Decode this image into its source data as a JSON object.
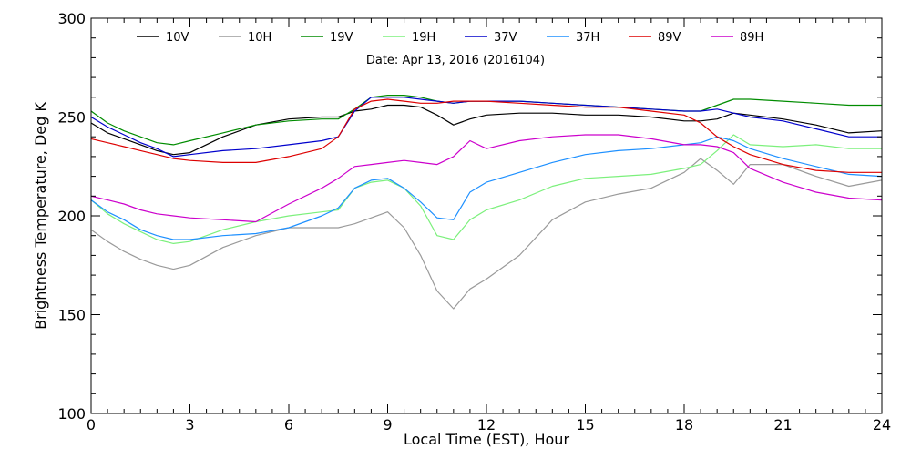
{
  "chart_data": {
    "type": "line",
    "subtitle": "Date: Apr 13, 2016 (2016104)",
    "xlabel": "Local Time (EST), Hour",
    "ylabel": "Brightness Temperature, Deg K",
    "xlim": [
      0,
      24
    ],
    "ylim": [
      100,
      300
    ],
    "xticks": [
      0,
      3,
      6,
      9,
      12,
      15,
      18,
      21,
      24
    ],
    "yticks": [
      100,
      150,
      200,
      250,
      300
    ],
    "grid": false,
    "legend_position": "top",
    "series": [
      {
        "name": "10V",
        "color": "#000000",
        "x": [
          0,
          0.5,
          1,
          1.5,
          2,
          2.5,
          3,
          4,
          5,
          6,
          7,
          7.5,
          8,
          8.5,
          9,
          9.5,
          10,
          10.5,
          11,
          11.5,
          12,
          13,
          14,
          15,
          16,
          17,
          18,
          18.5,
          19,
          19.5,
          20,
          21,
          22,
          23,
          24
        ],
        "y": [
          247,
          242,
          239,
          236,
          233,
          231,
          232,
          240,
          246,
          249,
          250,
          250,
          253,
          254,
          256,
          256,
          255,
          251,
          246,
          249,
          251,
          252,
          252,
          251,
          251,
          250,
          248,
          248,
          249,
          252,
          251,
          249,
          246,
          242,
          243
        ]
      },
      {
        "name": "10H",
        "color": "#9a9a9a",
        "x": [
          0,
          0.5,
          1,
          1.5,
          2,
          2.5,
          3,
          4,
          5,
          6,
          7,
          7.5,
          8,
          8.5,
          9,
          9.5,
          10,
          10.5,
          11,
          11.5,
          12,
          13,
          14,
          15,
          16,
          17,
          18,
          18.5,
          19,
          19.5,
          20,
          21,
          22,
          23,
          24
        ],
        "y": [
          193,
          187,
          182,
          178,
          175,
          173,
          175,
          184,
          190,
          194,
          194,
          194,
          196,
          199,
          202,
          194,
          180,
          162,
          153,
          163,
          168,
          180,
          198,
          207,
          211,
          214,
          222,
          229,
          223,
          216,
          226,
          226,
          220,
          215,
          218
        ]
      },
      {
        "name": "19V",
        "color": "#008c00",
        "x": [
          0,
          0.5,
          1,
          1.5,
          2,
          2.5,
          3,
          4,
          5,
          6,
          7,
          7.5,
          8,
          8.5,
          9,
          9.5,
          10,
          10.5,
          11,
          11.5,
          12,
          13,
          14,
          15,
          16,
          17,
          18,
          18.5,
          19,
          19.5,
          20,
          21,
          22,
          23,
          24
        ],
        "y": [
          253,
          247,
          243,
          240,
          237,
          236,
          238,
          242,
          246,
          248,
          249,
          249,
          254,
          260,
          261,
          261,
          260,
          258,
          257,
          258,
          258,
          258,
          257,
          256,
          255,
          254,
          253,
          253,
          256,
          259,
          259,
          258,
          257,
          256,
          256
        ]
      },
      {
        "name": "19H",
        "color": "#7cf07c",
        "x": [
          0,
          0.5,
          1,
          1.5,
          2,
          2.5,
          3,
          4,
          5,
          6,
          7,
          7.5,
          8,
          8.5,
          9,
          9.5,
          10,
          10.5,
          11,
          11.5,
          12,
          13,
          14,
          15,
          16,
          17,
          18,
          18.5,
          19,
          19.5,
          20,
          21,
          22,
          23,
          24
        ],
        "y": [
          208,
          201,
          196,
          192,
          188,
          186,
          187,
          193,
          197,
          200,
          202,
          203,
          214,
          217,
          218,
          214,
          205,
          190,
          188,
          198,
          203,
          208,
          215,
          219,
          220,
          221,
          224,
          226,
          233,
          241,
          236,
          235,
          236,
          234,
          234
        ]
      },
      {
        "name": "37V",
        "color": "#0000cc",
        "x": [
          0,
          0.5,
          1,
          1.5,
          2,
          2.5,
          3,
          4,
          5,
          6,
          7,
          7.5,
          8,
          8.5,
          9,
          9.5,
          10,
          10.5,
          11,
          11.5,
          12,
          13,
          14,
          15,
          16,
          17,
          18,
          18.5,
          19,
          19.5,
          20,
          21,
          22,
          23,
          24
        ],
        "y": [
          250,
          245,
          241,
          237,
          234,
          230,
          231,
          233,
          234,
          236,
          238,
          240,
          253,
          260,
          260,
          260,
          259,
          258,
          257,
          258,
          258,
          258,
          257,
          256,
          255,
          254,
          253,
          253,
          254,
          252,
          250,
          248,
          244,
          240,
          240
        ]
      },
      {
        "name": "37H",
        "color": "#1e90ff",
        "x": [
          0,
          0.5,
          1,
          1.5,
          2,
          2.5,
          3,
          4,
          5,
          6,
          7,
          7.5,
          8,
          8.5,
          9,
          9.5,
          10,
          10.5,
          11,
          11.5,
          12,
          13,
          14,
          15,
          16,
          17,
          18,
          18.5,
          19,
          19.5,
          20,
          21,
          22,
          23,
          24
        ],
        "y": [
          208,
          202,
          198,
          193,
          190,
          188,
          188,
          190,
          191,
          194,
          200,
          204,
          214,
          218,
          219,
          214,
          207,
          199,
          198,
          212,
          217,
          222,
          227,
          231,
          233,
          234,
          236,
          237,
          240,
          238,
          234,
          229,
          225,
          221,
          220
        ]
      },
      {
        "name": "89V",
        "color": "#dd0000",
        "x": [
          0,
          0.5,
          1,
          1.5,
          2,
          2.5,
          3,
          4,
          5,
          6,
          7,
          7.5,
          8,
          8.5,
          9,
          9.5,
          10,
          10.5,
          11,
          11.5,
          12,
          13,
          14,
          15,
          16,
          17,
          18,
          18.5,
          19,
          19.5,
          20,
          21,
          22,
          23,
          24
        ],
        "y": [
          239,
          237,
          235,
          233,
          231,
          229,
          228,
          227,
          227,
          230,
          234,
          240,
          254,
          258,
          259,
          258,
          257,
          257,
          258,
          258,
          258,
          257,
          256,
          255,
          255,
          253,
          251,
          247,
          240,
          235,
          231,
          226,
          223,
          222,
          222
        ]
      },
      {
        "name": "89H",
        "color": "#cc00cc",
        "x": [
          0,
          0.5,
          1,
          1.5,
          2,
          2.5,
          3,
          4,
          5,
          6,
          7,
          7.5,
          8,
          8.5,
          9,
          9.5,
          10,
          10.5,
          11,
          11.5,
          12,
          13,
          14,
          15,
          16,
          17,
          18,
          18.5,
          19,
          19.5,
          20,
          21,
          22,
          23,
          24
        ],
        "y": [
          210,
          208,
          206,
          203,
          201,
          200,
          199,
          198,
          197,
          206,
          214,
          219,
          225,
          226,
          227,
          228,
          227,
          226,
          230,
          238,
          234,
          238,
          240,
          241,
          241,
          239,
          236,
          236,
          235,
          232,
          224,
          217,
          212,
          209,
          208
        ]
      }
    ]
  }
}
